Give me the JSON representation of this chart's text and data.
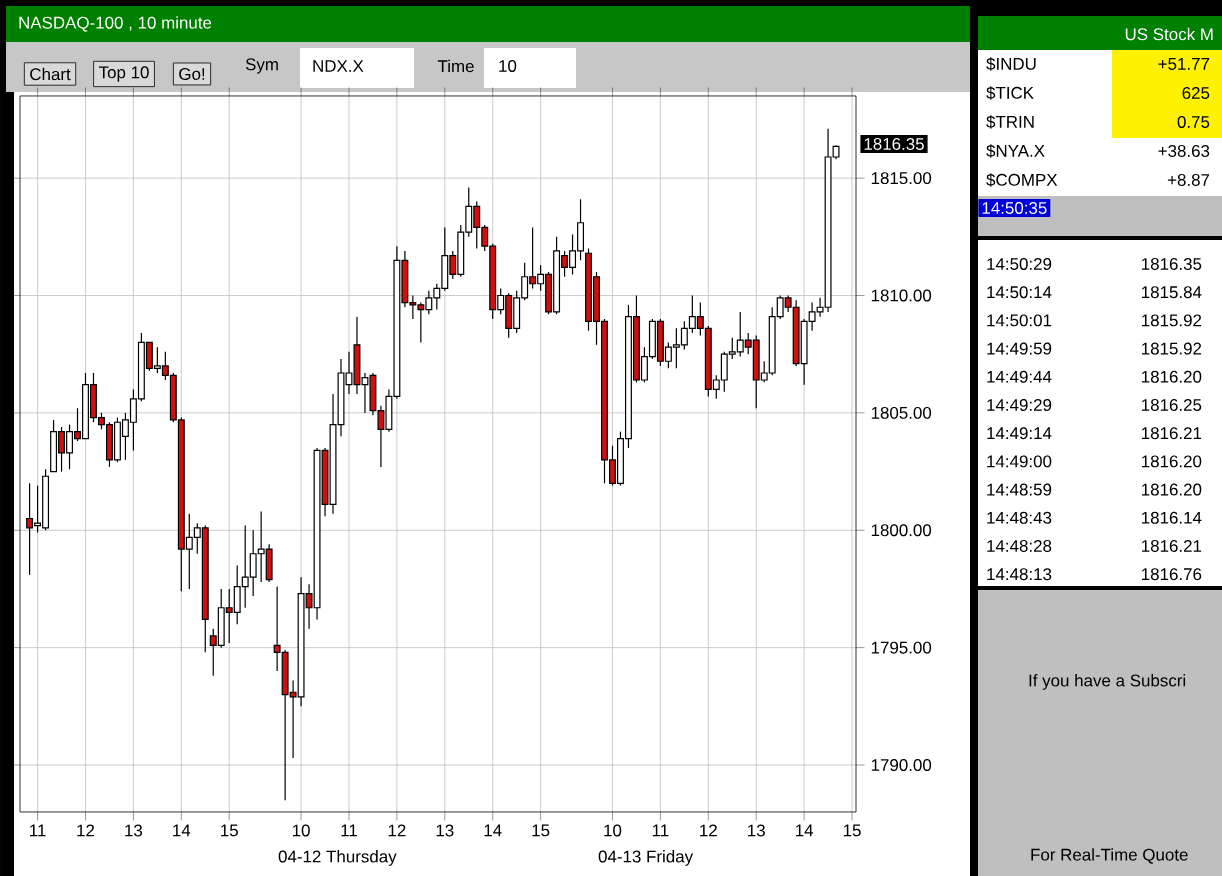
{
  "chart_data": {
    "type": "candlestick",
    "title": "NASDAQ-100 , 10 minute",
    "categories": [
      null,
      "11",
      null,
      null,
      null,
      null,
      null,
      "12",
      null,
      null,
      null,
      null,
      null,
      "13",
      null,
      null,
      null,
      null,
      null,
      "14",
      null,
      null,
      null,
      null,
      null,
      "15",
      null,
      null,
      null,
      null,
      null,
      null,
      null,
      null,
      "10",
      null,
      null,
      null,
      null,
      null,
      "11",
      null,
      null,
      null,
      null,
      null,
      "12",
      null,
      null,
      null,
      null,
      null,
      "13",
      null,
      null,
      null,
      null,
      null,
      "14",
      null,
      null,
      null,
      null,
      null,
      "15",
      null,
      null,
      null,
      null,
      null,
      null,
      null,
      null,
      "10",
      null,
      null,
      null,
      null,
      null,
      "11",
      null,
      null,
      null,
      null,
      null,
      "12",
      null,
      null,
      null,
      null,
      null,
      "13",
      null,
      null,
      null,
      null,
      null,
      "14",
      null,
      null,
      null,
      null,
      null,
      "15"
    ],
    "ohlc": [
      [
        1800.5,
        1802.0,
        1798.1,
        1800.1
      ],
      [
        1800.2,
        1801.9,
        1799.9,
        1800.3
      ],
      [
        1800.1,
        1802.6,
        1800.0,
        1802.3
      ],
      [
        1802.5,
        1804.7,
        1802.5,
        1804.2
      ],
      [
        1804.2,
        1804.4,
        1802.5,
        1803.3
      ],
      [
        1803.3,
        1804.5,
        1802.6,
        1804.2
      ],
      [
        1804.2,
        1805.2,
        1803.8,
        1803.9
      ],
      [
        1803.9,
        1806.7,
        1803.9,
        1806.2
      ],
      [
        1806.2,
        1806.7,
        1804.6,
        1804.8
      ],
      [
        1804.8,
        1805.0,
        1804.3,
        1804.5
      ],
      [
        1804.5,
        1804.6,
        1802.7,
        1803.0
      ],
      [
        1803.0,
        1804.8,
        1802.9,
        1804.6
      ],
      [
        1804.0,
        1805.0,
        1803.0,
        1804.7
      ],
      [
        1804.6,
        1806.0,
        1803.4,
        1805.6
      ],
      [
        1805.6,
        1808.4,
        1805.5,
        1808.0
      ],
      [
        1808.0,
        1808.0,
        1806.8,
        1806.9
      ],
      [
        1806.9,
        1807.8,
        1806.7,
        1807.0
      ],
      [
        1807.0,
        1807.6,
        1806.4,
        1806.6
      ],
      [
        1806.6,
        1806.7,
        1804.6,
        1804.7
      ],
      [
        1804.7,
        1804.8,
        1797.4,
        1799.2
      ],
      [
        1799.2,
        1800.7,
        1797.5,
        1799.7
      ],
      [
        1799.7,
        1800.3,
        1799.0,
        1800.1
      ],
      [
        1800.1,
        1800.2,
        1794.8,
        1796.2
      ],
      [
        1795.5,
        1795.8,
        1793.8,
        1795.1
      ],
      [
        1795.1,
        1797.5,
        1795.0,
        1796.7
      ],
      [
        1796.7,
        1797.5,
        1795.2,
        1796.5
      ],
      [
        1796.5,
        1798.5,
        1796.0,
        1797.6
      ],
      [
        1797.6,
        1800.2,
        1796.7,
        1798.0
      ],
      [
        1798.0,
        1800.0,
        1797.2,
        1799.0
      ],
      [
        1799.0,
        1800.8,
        1797.8,
        1799.2
      ],
      [
        1799.2,
        1799.4,
        1797.8,
        1797.9
      ],
      [
        1795.1,
        1797.6,
        1794.0,
        1794.8
      ],
      [
        1794.8,
        1794.9,
        1788.5,
        1793.0
      ],
      [
        1793.1,
        1793.6,
        1790.3,
        1792.9
      ],
      [
        1792.9,
        1798.0,
        1792.5,
        1797.3
      ],
      [
        1797.3,
        1797.7,
        1795.8,
        1796.7
      ],
      [
        1796.7,
        1803.5,
        1796.2,
        1803.4
      ],
      [
        1803.4,
        1803.5,
        1800.6,
        1801.1
      ],
      [
        1801.1,
        1805.8,
        1800.7,
        1804.5
      ],
      [
        1804.5,
        1807.3,
        1804.0,
        1806.7
      ],
      [
        1806.2,
        1807.6,
        1805.8,
        1806.7
      ],
      [
        1807.9,
        1809.1,
        1805.8,
        1806.2
      ],
      [
        1806.2,
        1806.7,
        1805.0,
        1806.5
      ],
      [
        1806.6,
        1806.7,
        1804.9,
        1805.1
      ],
      [
        1805.1,
        1805.3,
        1802.7,
        1804.3
      ],
      [
        1804.3,
        1806.0,
        1804.2,
        1805.7
      ],
      [
        1805.7,
        1812.1,
        1805.6,
        1811.5
      ],
      [
        1811.5,
        1811.9,
        1809.5,
        1809.7
      ],
      [
        1809.7,
        1810.0,
        1809.0,
        1809.6
      ],
      [
        1809.6,
        1809.7,
        1808.0,
        1809.4
      ],
      [
        1809.4,
        1810.2,
        1809.2,
        1809.9
      ],
      [
        1809.9,
        1810.5,
        1809.4,
        1810.3
      ],
      [
        1810.3,
        1812.9,
        1810.2,
        1811.7
      ],
      [
        1811.7,
        1811.9,
        1810.7,
        1810.9
      ],
      [
        1810.9,
        1813.0,
        1810.8,
        1812.7
      ],
      [
        1812.7,
        1814.6,
        1812.5,
        1813.8
      ],
      [
        1813.8,
        1814.0,
        1812.0,
        1812.9
      ],
      [
        1812.9,
        1813.0,
        1811.9,
        1812.1
      ],
      [
        1812.1,
        1812.2,
        1809.0,
        1809.4
      ],
      [
        1809.4,
        1810.3,
        1809.2,
        1810.0
      ],
      [
        1810.0,
        1810.1,
        1808.2,
        1808.6
      ],
      [
        1808.6,
        1810.2,
        1808.4,
        1809.9
      ],
      [
        1809.9,
        1811.4,
        1809.8,
        1810.8
      ],
      [
        1810.8,
        1812.9,
        1810.3,
        1810.5
      ],
      [
        1810.5,
        1811.3,
        1810.2,
        1810.9
      ],
      [
        1810.9,
        1811.0,
        1809.2,
        1809.3
      ],
      [
        1809.3,
        1812.5,
        1809.2,
        1811.9
      ],
      [
        1811.7,
        1811.9,
        1810.8,
        1811.2
      ],
      [
        1811.2,
        1812.6,
        1810.9,
        1811.9
      ],
      [
        1811.9,
        1814.1,
        1811.5,
        1813.1
      ],
      [
        1811.8,
        1812.0,
        1808.5,
        1808.9
      ],
      [
        1810.8,
        1811.0,
        1807.9,
        1808.9
      ],
      [
        1808.9,
        1809.0,
        1802.0,
        1803.0
      ],
      [
        1803.0,
        1803.6,
        1801.9,
        1802.0
      ],
      [
        1802.0,
        1804.2,
        1801.9,
        1803.9
      ],
      [
        1803.9,
        1809.6,
        1803.5,
        1809.1
      ],
      [
        1809.1,
        1810.0,
        1806.3,
        1806.4
      ],
      [
        1806.4,
        1807.8,
        1806.3,
        1807.4
      ],
      [
        1807.4,
        1809.0,
        1807.3,
        1808.9
      ],
      [
        1808.9,
        1809.0,
        1807.0,
        1807.2
      ],
      [
        1807.2,
        1808.0,
        1806.9,
        1807.8
      ],
      [
        1807.8,
        1808.6,
        1806.9,
        1807.9
      ],
      [
        1807.9,
        1808.9,
        1807.7,
        1808.6
      ],
      [
        1808.6,
        1810.0,
        1808.4,
        1809.1
      ],
      [
        1809.1,
        1809.7,
        1808.3,
        1808.6
      ],
      [
        1808.6,
        1808.7,
        1805.7,
        1806.0
      ],
      [
        1806.0,
        1806.6,
        1805.6,
        1806.4
      ],
      [
        1806.4,
        1807.6,
        1805.9,
        1807.5
      ],
      [
        1807.5,
        1808.2,
        1807.3,
        1807.6
      ],
      [
        1807.6,
        1809.3,
        1807.4,
        1808.1
      ],
      [
        1808.1,
        1808.4,
        1807.5,
        1807.8
      ],
      [
        1808.1,
        1808.3,
        1805.2,
        1806.4
      ],
      [
        1806.4,
        1807.2,
        1806.3,
        1806.7
      ],
      [
        1806.7,
        1809.5,
        1806.6,
        1809.1
      ],
      [
        1809.1,
        1810.0,
        1809.0,
        1809.9
      ],
      [
        1809.9,
        1810.0,
        1809.3,
        1809.5
      ],
      [
        1809.5,
        1809.8,
        1807.0,
        1807.1
      ],
      [
        1807.1,
        1809.0,
        1806.2,
        1808.9
      ],
      [
        1808.9,
        1809.7,
        1808.5,
        1809.3
      ],
      [
        1809.3,
        1809.9,
        1809.1,
        1809.5
      ],
      [
        1809.5,
        1817.1,
        1809.3,
        1815.9
      ],
      [
        1815.9,
        1816.4,
        1815.8,
        1816.35
      ],
      null,
      null
    ],
    "colors": [
      "#cc1111",
      "#ffffff",
      "#ffffff",
      "#ffffff",
      "#cc1111",
      "#ffffff",
      "#cc1111",
      "#ffffff",
      "#cc1111",
      "#cc1111",
      "#cc1111",
      "#ffffff",
      "#ffffff",
      "#ffffff",
      "#ffffff",
      "#cc1111",
      "#ffffff",
      "#cc1111",
      "#cc1111",
      "#cc1111",
      "#ffffff",
      "#ffffff",
      "#cc1111",
      "#cc1111",
      "#ffffff",
      "#cc1111",
      "#ffffff",
      "#ffffff",
      "#ffffff",
      "#ffffff",
      "#cc1111",
      "#cc1111",
      "#cc1111",
      "#cc1111",
      "#ffffff",
      "#cc1111",
      "#ffffff",
      "#cc1111",
      "#ffffff",
      "#ffffff",
      "#ffffff",
      "#cc1111",
      "#ffffff",
      "#cc1111",
      "#cc1111",
      "#ffffff",
      "#ffffff",
      "#cc1111",
      "#cc1111",
      "#cc1111",
      "#ffffff",
      "#ffffff",
      "#ffffff",
      "#cc1111",
      "#ffffff",
      "#ffffff",
      "#cc1111",
      "#cc1111",
      "#cc1111",
      "#ffffff",
      "#cc1111",
      "#ffffff",
      "#ffffff",
      "#cc1111",
      "#ffffff",
      "#cc1111",
      "#ffffff",
      "#cc1111",
      "#ffffff",
      "#ffffff",
      "#cc1111",
      "#cc1111",
      "#cc1111",
      "#cc1111",
      "#ffffff",
      "#ffffff",
      "#cc1111",
      "#ffffff",
      "#ffffff",
      "#cc1111",
      "#ffffff",
      "#ffffff",
      "#ffffff",
      "#ffffff",
      "#cc1111",
      "#cc1111",
      "#ffffff",
      "#ffffff",
      "#ffffff",
      "#ffffff",
      "#cc1111",
      "#cc1111",
      "#ffffff",
      "#ffffff",
      "#ffffff",
      "#cc1111",
      "#cc1111",
      "#ffffff",
      "#ffffff",
      "#ffffff",
      "#ffffff",
      "#ffffff",
      null,
      null
    ],
    "ylim": [
      1788,
      1818.5
    ],
    "yticks": [
      {
        "value": 1790,
        "label": "1790.00"
      },
      {
        "value": 1795,
        "label": "1795.00"
      },
      {
        "value": 1800,
        "label": "1800.00"
      },
      {
        "value": 1805,
        "label": "1805.00"
      },
      {
        "value": 1810,
        "label": "1810.00"
      },
      {
        "value": 1815,
        "label": "1815.00"
      }
    ],
    "grid": true,
    "annotations": [
      "04-12 Thursday",
      "04-13 Friday",
      "1816.35",
      "Chart",
      "Top 10",
      "Go!",
      "Sym",
      "NDX.X",
      "Time",
      "10",
      "US Stock M",
      "$INDU",
      "+51.77",
      "$TICK",
      "625",
      "$TRIN",
      "0.75",
      "$NYA.X",
      "+38.63",
      "$COMPX",
      "+8.87",
      "14:50:35",
      "14:50:29",
      "1816.35",
      "14:50:14",
      "1815.84",
      "14:50:01",
      "1815.92",
      "14:49:59",
      "1815.92",
      "14:49:44",
      "1816.20",
      "14:49:29",
      "1816.25",
      "14:49:14",
      "1816.21",
      "14:49:00",
      "1816.20",
      "14:48:59",
      "1816.20",
      "14:48:43",
      "1816.14",
      "14:48:28",
      "1816.21",
      "14:48:13",
      "1816.76",
      "If you have a Subscri",
      "For Real-Time Quote"
    ]
  }
}
